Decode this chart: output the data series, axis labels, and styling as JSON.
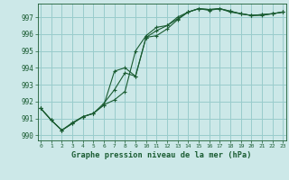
{
  "title": "Graphe pression niveau de la mer (hPa)",
  "bg_color": "#cce8e8",
  "grid_color": "#99cccc",
  "line_color": "#1a5c32",
  "x": [
    0,
    1,
    2,
    3,
    4,
    5,
    6,
    7,
    8,
    9,
    10,
    11,
    12,
    13,
    14,
    15,
    16,
    17,
    18,
    19,
    20,
    21,
    22,
    23
  ],
  "line1": [
    991.6,
    990.9,
    990.3,
    990.7,
    991.1,
    991.3,
    991.8,
    992.1,
    992.6,
    995.0,
    995.9,
    996.4,
    996.5,
    997.0,
    997.3,
    997.5,
    997.45,
    997.5,
    997.35,
    997.2,
    997.1,
    997.15,
    997.2,
    997.3
  ],
  "line2": [
    991.6,
    990.9,
    990.3,
    990.75,
    991.1,
    991.3,
    991.9,
    992.7,
    993.7,
    993.5,
    995.8,
    995.9,
    996.3,
    996.85,
    997.3,
    997.5,
    997.45,
    997.5,
    997.35,
    997.2,
    997.1,
    997.15,
    997.2,
    997.3
  ],
  "line3": [
    991.6,
    990.9,
    990.3,
    990.7,
    991.1,
    991.3,
    991.8,
    993.8,
    994.0,
    993.5,
    995.8,
    996.2,
    996.5,
    996.9,
    997.3,
    997.5,
    997.4,
    997.5,
    997.3,
    997.2,
    997.1,
    997.1,
    997.2,
    997.3
  ],
  "ylim": [
    989.7,
    997.8
  ],
  "yticks": [
    990,
    991,
    992,
    993,
    994,
    995,
    996,
    997
  ],
  "xlim": [
    -0.3,
    23.3
  ],
  "xticks": [
    0,
    1,
    2,
    3,
    4,
    5,
    6,
    7,
    8,
    9,
    10,
    11,
    12,
    13,
    14,
    15,
    16,
    17,
    18,
    19,
    20,
    21,
    22,
    23
  ]
}
